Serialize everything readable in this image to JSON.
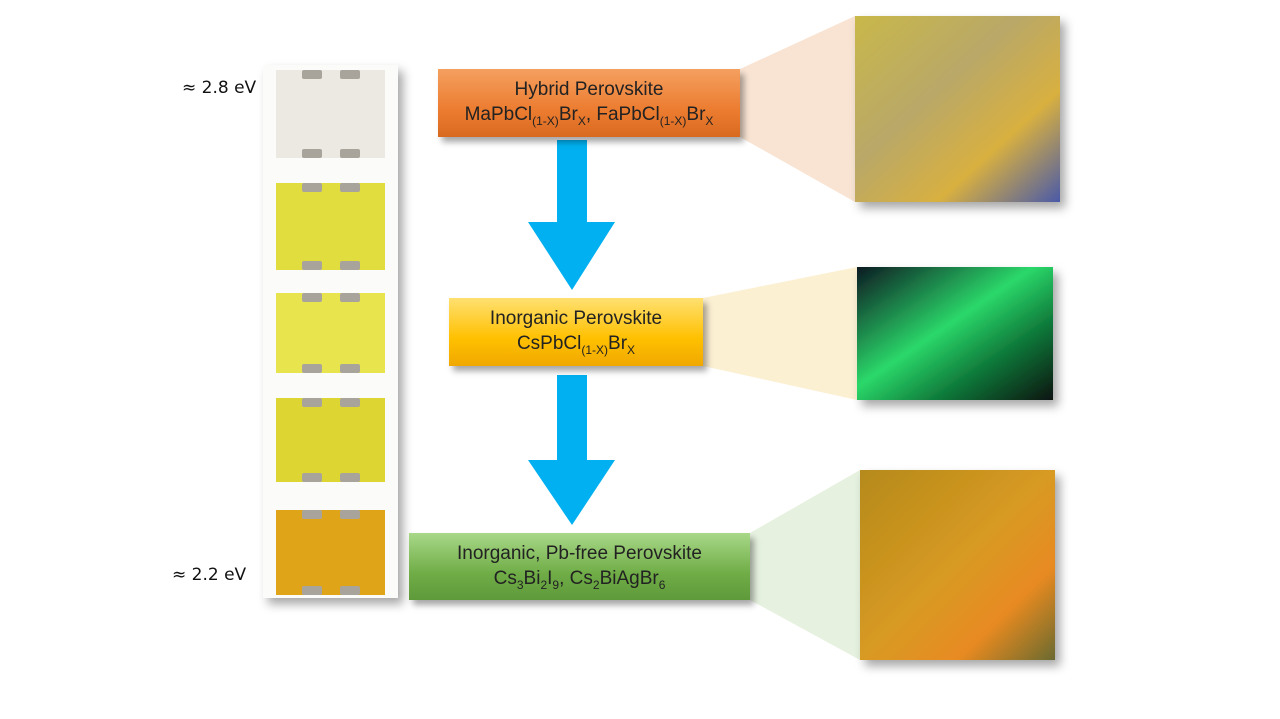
{
  "labels": {
    "top": "≈ 2.8 eV",
    "bottom": "≈ 2.2 eV"
  },
  "boxes": [
    {
      "title": "Hybrid Perovskite",
      "formula": [
        "MaPbCl",
        "(1-X)",
        "Br",
        "X",
        ", FaPbCl",
        "(1-X)",
        "Br",
        "X"
      ]
    },
    {
      "title": "Inorganic Perovskite",
      "formula": [
        "CsPbCl",
        "(1-X)",
        "Br",
        "X"
      ]
    },
    {
      "title": "Inorganic, Pb-free Perovskite",
      "formula": [
        "Cs",
        "3",
        "Bi",
        "2",
        "I",
        "9",
        ", Cs",
        "2",
        "BiAgBr",
        "6"
      ]
    }
  ]
}
